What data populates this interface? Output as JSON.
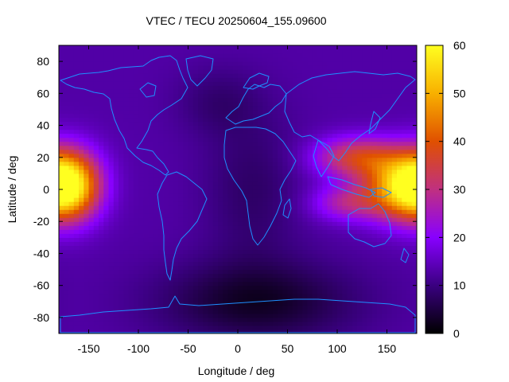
{
  "chart_data": {
    "type": "heatmap",
    "title": "VTEC / TECU 20250604_155.09600",
    "xlabel": "Longitude / deg",
    "ylabel": "Latitude / deg",
    "xlim": [
      -180,
      180
    ],
    "ylim": [
      -90,
      90
    ],
    "x_ticks": [
      {
        "value": -150,
        "label": "-150"
      },
      {
        "value": -100,
        "label": "-100"
      },
      {
        "value": -50,
        "label": "-50"
      },
      {
        "value": 0,
        "label": "0"
      },
      {
        "value": 50,
        "label": "50"
      },
      {
        "value": 100,
        "label": "100"
      },
      {
        "value": 150,
        "label": "150"
      }
    ],
    "y_ticks": [
      {
        "value": -80,
        "label": "-80"
      },
      {
        "value": -60,
        "label": "-60"
      },
      {
        "value": -40,
        "label": "-40"
      },
      {
        "value": -20,
        "label": "-20"
      },
      {
        "value": 0,
        "label": "0"
      },
      {
        "value": 20,
        "label": "20"
      },
      {
        "value": 40,
        "label": "40"
      },
      {
        "value": 60,
        "label": "60"
      },
      {
        "value": 80,
        "label": "80"
      }
    ],
    "colorbar": {
      "range": [
        0,
        60
      ],
      "ticks": [
        {
          "value": 0,
          "label": "0"
        },
        {
          "value": 10,
          "label": "10"
        },
        {
          "value": 20,
          "label": "20"
        },
        {
          "value": 30,
          "label": "30"
        },
        {
          "value": 40,
          "label": "40"
        },
        {
          "value": 50,
          "label": "50"
        },
        {
          "value": 60,
          "label": "60"
        }
      ],
      "palette": [
        "#000000",
        "#3a0080",
        "#8800ff",
        "#c03080",
        "#e05000",
        "#f8b000",
        "#ffff20"
      ]
    },
    "grid": false,
    "coastline_color": "#1e90ff",
    "field": {
      "background": 13,
      "bumps": [
        {
          "lon": -170,
          "lat": 3,
          "peak": 44,
          "sigma_lon": 22,
          "sigma_lat": 15
        },
        {
          "lon": 160,
          "lat": 2,
          "peak": 30,
          "sigma_lon": 25,
          "sigma_lat": 14
        },
        {
          "lon": 120,
          "lat": 20,
          "peak": 22,
          "sigma_lon": 30,
          "sigma_lat": 9
        },
        {
          "lon": 110,
          "lat": -8,
          "peak": 14,
          "sigma_lon": 25,
          "sigma_lat": 8
        },
        {
          "lon": 20,
          "lat": -70,
          "peak": -10,
          "sigma_lon": 70,
          "sigma_lat": 18
        },
        {
          "lon": 15,
          "lat": 0,
          "peak": -5,
          "sigma_lon": 35,
          "sigma_lat": 35
        },
        {
          "lon": -20,
          "lat": 55,
          "peak": -4,
          "sigma_lon": 30,
          "sigma_lat": 15
        }
      ]
    }
  }
}
